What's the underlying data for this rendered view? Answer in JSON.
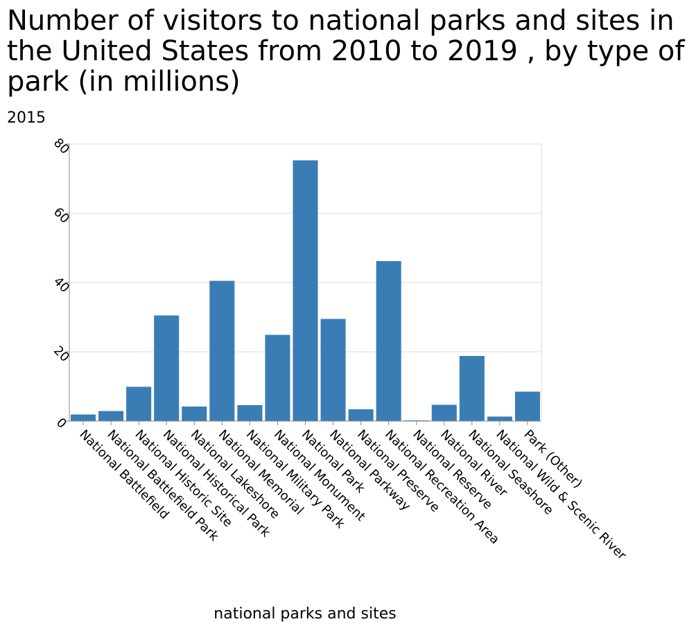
{
  "chart_data": {
    "type": "bar",
    "title": "Number of visitors to national parks and sites in the United States from 2010 to 2019 , by type of park (in millions)",
    "subtitle": "2015",
    "xlabel": "national parks and sites",
    "ylabel": "",
    "ylim": [
      0,
      80
    ],
    "yticks": [
      0,
      20,
      40,
      60,
      80
    ],
    "grid": true,
    "bar_color": "#3a7db4",
    "categories": [
      "National Battlefield",
      "National Battlefield Park",
      "National Historic Site",
      "National Historical Park",
      "National Lakeshore",
      "National Memorial",
      "National Military Park",
      "National Monument",
      "National Park",
      "National Parkway",
      "National Preserve",
      "National Recreation Area",
      "National Reserve",
      "National River",
      "National Seashore",
      "National Wild & Scenic River",
      "Park (Other)"
    ],
    "values": [
      1.9,
      2.9,
      9.9,
      30.5,
      4.2,
      40.5,
      4.6,
      24.9,
      75.3,
      29.5,
      3.4,
      46.2,
      0.2,
      4.7,
      18.8,
      1.3,
      8.5
    ]
  }
}
